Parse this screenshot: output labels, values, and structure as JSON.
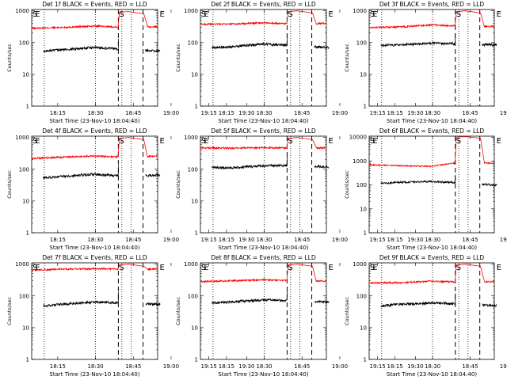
{
  "chart_data": {
    "type": "line",
    "y_scale": "log",
    "ylabel": "Counts/sec",
    "xlabel": "Start Time (23-Nov-10 18:04:40)",
    "x_ticks": [
      "18:15",
      "18:30",
      "18:45",
      "19:00",
      "19:15",
      "19:30"
    ],
    "x_range_min": [
      0,
      50
    ],
    "gap_min": [
      36,
      45
    ],
    "start_marker": "S",
    "end_marker": "E",
    "colors": {
      "events": "#000000",
      "lld": "#ff0000"
    },
    "series_legend": {
      "events": "BLACK = Events",
      "lld": "RED = LLD"
    },
    "panels": [
      {
        "title": "Det 1f BLACK = Events, RED = LLD",
        "y_ticks": [
          "1",
          "10",
          "100",
          "1000"
        ],
        "ylim": [
          1,
          1100
        ],
        "events_level": [
          50,
          60,
          70,
          60,
          55
        ],
        "lld_level": [
          280,
          300,
          330,
          300,
          320
        ],
        "lld_peak": 900
      },
      {
        "title": "Det 2f BLACK = Events, RED = LLD",
        "y_ticks": [
          "1",
          "10",
          "100",
          "1000"
        ],
        "ylim": [
          1,
          1100
        ],
        "events_level": [
          65,
          75,
          90,
          80,
          70
        ],
        "lld_level": [
          380,
          380,
          420,
          380,
          400
        ],
        "lld_peak": 950
      },
      {
        "title": "Det 3f BLACK = Events, RED = LLD",
        "y_ticks": [
          "1",
          "10",
          "100",
          "1000"
        ],
        "ylim": [
          1,
          1100
        ],
        "events_level": [
          80,
          85,
          95,
          90,
          85
        ],
        "lld_level": [
          300,
          310,
          360,
          330,
          320
        ],
        "lld_peak": 950
      },
      {
        "title": "Det 4f BLACK = Events, RED = LLD",
        "y_ticks": [
          "1",
          "10",
          "100",
          "1000"
        ],
        "ylim": [
          1,
          1100
        ],
        "events_level": [
          50,
          60,
          70,
          60,
          65
        ],
        "lld_level": [
          220,
          240,
          260,
          240,
          260
        ],
        "lld_peak": 950
      },
      {
        "title": "Det 5f BLACK = Events, RED = LLD",
        "y_ticks": [
          "1",
          "10",
          "100",
          "1000"
        ],
        "ylim": [
          1,
          1100
        ],
        "events_level": [
          120,
          110,
          130,
          130,
          120
        ],
        "lld_level": [
          470,
          460,
          480,
          460,
          470
        ],
        "lld_peak": 950
      },
      {
        "title": "Det 6f BLACK = Events, RED = LLD",
        "y_ticks": [
          "1",
          "10",
          "100",
          "1000",
          "10000"
        ],
        "ylim": [
          1,
          11000
        ],
        "events_level": [
          110,
          130,
          140,
          120,
          100
        ],
        "lld_level": [
          700,
          640,
          600,
          900,
          800
        ],
        "lld_peak": 10000
      },
      {
        "title": "Det 7f BLACK = Events, RED = LLD",
        "y_ticks": [
          "1",
          "10",
          "100",
          "1000"
        ],
        "ylim": [
          1,
          1100
        ],
        "events_level": [
          45,
          55,
          65,
          60,
          55
        ],
        "lld_level": [
          650,
          700,
          720,
          700,
          700
        ],
        "lld_peak": 950
      },
      {
        "title": "Det 8f BLACK = Events, RED = LLD",
        "y_ticks": [
          "1",
          "10",
          "100",
          "1000"
        ],
        "ylim": [
          1,
          1100
        ],
        "events_level": [
          55,
          65,
          75,
          70,
          65
        ],
        "lld_level": [
          280,
          300,
          320,
          300,
          290
        ],
        "lld_peak": 950
      },
      {
        "title": "Det 9f BLACK = Events, RED = LLD",
        "y_ticks": [
          "1",
          "10",
          "100",
          "1000"
        ],
        "ylim": [
          1,
          1100
        ],
        "events_level": [
          45,
          55,
          60,
          55,
          50
        ],
        "lld_level": [
          260,
          260,
          290,
          270,
          280
        ],
        "lld_peak": 950
      }
    ],
    "grid": false,
    "legend": "none"
  }
}
